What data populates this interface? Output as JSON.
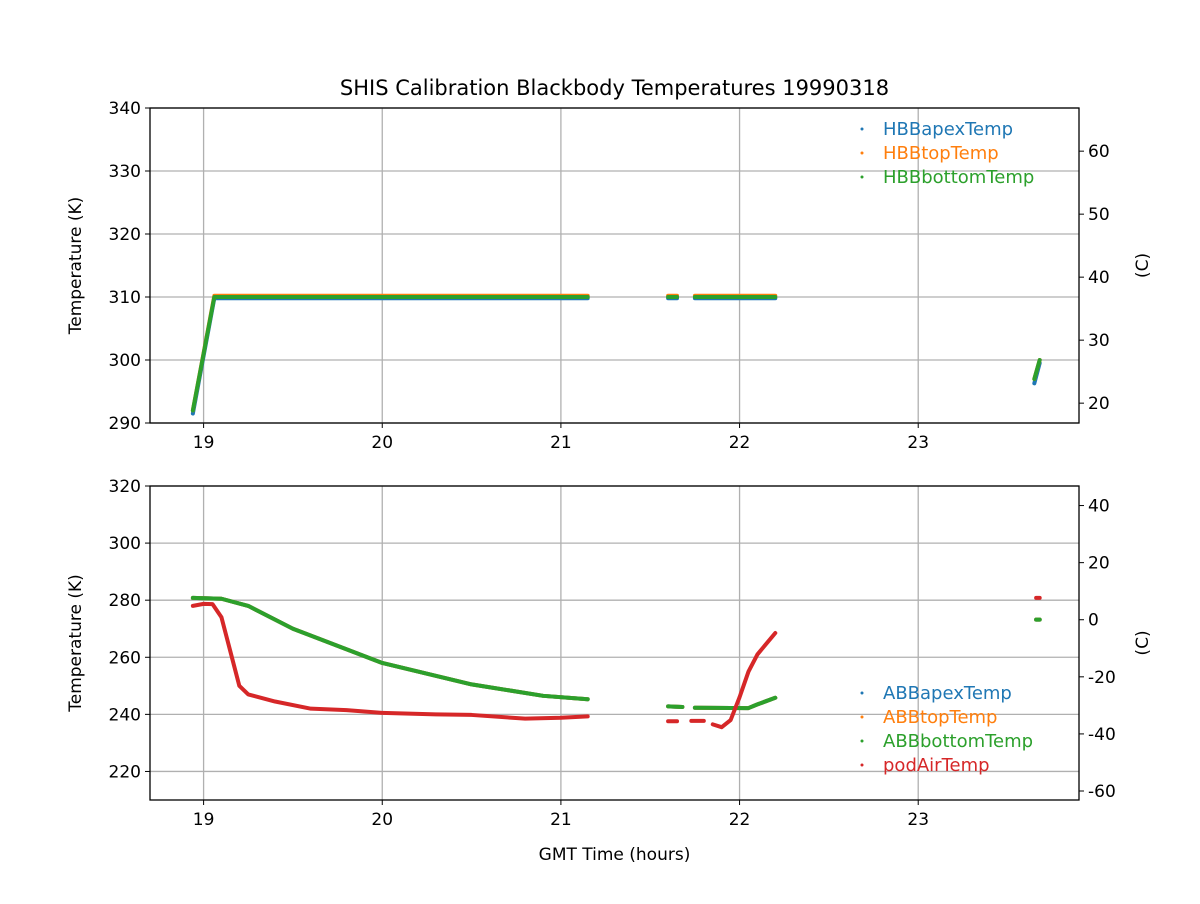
{
  "chart_data": [
    {
      "type": "scatter",
      "title": "SHIS Calibration Blackbody Temperatures 19990318",
      "xlabel": "",
      "ylabel": "Temperature (K)",
      "ylabel_right": "(C)",
      "xlim": [
        18.7,
        23.9
      ],
      "ylim": [
        290,
        340
      ],
      "grid": true,
      "legend": "top-right",
      "xticks": [
        19,
        20,
        21,
        22,
        23
      ],
      "yticks": [
        290,
        300,
        310,
        320,
        330,
        340
      ],
      "yticks_right": [
        20,
        30,
        40,
        50,
        60
      ],
      "series": [
        {
          "name": "HBBapexTemp",
          "color": "#1f77b4",
          "segments": [
            [
              [
                18.94,
                291.5
              ],
              [
                19.06,
                309.8
              ],
              [
                21.15,
                309.8
              ]
            ],
            [
              [
                21.6,
                309.8
              ],
              [
                21.65,
                309.8
              ]
            ],
            [
              [
                21.75,
                309.8
              ],
              [
                22.2,
                309.8
              ]
            ],
            [
              [
                23.65,
                296.3
              ],
              [
                23.68,
                299.5
              ]
            ]
          ]
        },
        {
          "name": "HBBtopTemp",
          "color": "#ff7f0e",
          "segments": [
            [
              [
                18.94,
                292
              ],
              [
                19.06,
                310.2
              ],
              [
                21.15,
                310.2
              ]
            ],
            [
              [
                21.6,
                310.2
              ],
              [
                21.65,
                310.2
              ]
            ],
            [
              [
                21.75,
                310.2
              ],
              [
                22.2,
                310.2
              ]
            ],
            [
              [
                23.65,
                297
              ],
              [
                23.68,
                300
              ]
            ]
          ]
        },
        {
          "name": "HBBbottomTemp",
          "color": "#2ca02c",
          "segments": [
            [
              [
                18.94,
                292
              ],
              [
                19.06,
                310
              ],
              [
                21.15,
                310
              ]
            ],
            [
              [
                21.6,
                310
              ],
              [
                21.65,
                310
              ]
            ],
            [
              [
                21.75,
                310
              ],
              [
                22.2,
                310
              ]
            ],
            [
              [
                23.65,
                297
              ],
              [
                23.68,
                300
              ]
            ]
          ]
        }
      ]
    },
    {
      "type": "scatter",
      "title": "",
      "xlabel": "GMT Time (hours)",
      "ylabel": "Temperature (K)",
      "ylabel_right": "(C)",
      "xlim": [
        18.7,
        23.9
      ],
      "ylim": [
        210,
        320
      ],
      "grid": true,
      "legend": "bottom-right",
      "xticks": [
        19,
        20,
        21,
        22,
        23
      ],
      "yticks": [
        220,
        240,
        260,
        280,
        300,
        320
      ],
      "yticks_right": [
        -60,
        -40,
        -20,
        0,
        20,
        40
      ],
      "series": [
        {
          "name": "ABBapexTemp",
          "color": "#1f77b4",
          "segments": [
            [
              [
                18.94,
                280.8
              ],
              [
                19.1,
                280.5
              ],
              [
                19.25,
                278
              ],
              [
                19.5,
                270
              ],
              [
                20,
                258
              ],
              [
                20.5,
                250.5
              ],
              [
                20.9,
                246.5
              ],
              [
                21.15,
                245.3
              ]
            ],
            [
              [
                21.6,
                242.8
              ],
              [
                21.68,
                242.6
              ]
            ],
            [
              [
                21.75,
                242.3
              ],
              [
                22.05,
                242.2
              ],
              [
                22.1,
                243.5
              ],
              [
                22.2,
                245.8
              ]
            ],
            [
              [
                23.66,
                273.2
              ],
              [
                23.68,
                273.2
              ]
            ]
          ]
        },
        {
          "name": "ABBtopTemp",
          "color": "#ff7f0e",
          "segments": [
            [
              [
                18.94,
                280.8
              ],
              [
                19.1,
                280.5
              ],
              [
                19.25,
                278
              ],
              [
                19.5,
                270
              ],
              [
                20,
                258
              ],
              [
                20.5,
                250.5
              ],
              [
                20.9,
                246.5
              ],
              [
                21.15,
                245.3
              ]
            ],
            [
              [
                21.6,
                242.8
              ],
              [
                21.68,
                242.6
              ]
            ],
            [
              [
                21.75,
                242.3
              ],
              [
                22.05,
                242.2
              ],
              [
                22.1,
                243.5
              ],
              [
                22.2,
                245.8
              ]
            ],
            [
              [
                23.66,
                273.2
              ],
              [
                23.68,
                273.2
              ]
            ]
          ]
        },
        {
          "name": "ABBbottomTemp",
          "color": "#2ca02c",
          "segments": [
            [
              [
                18.94,
                280.8
              ],
              [
                19.1,
                280.5
              ],
              [
                19.25,
                278
              ],
              [
                19.5,
                270
              ],
              [
                20,
                258
              ],
              [
                20.5,
                250.5
              ],
              [
                20.9,
                246.5
              ],
              [
                21.15,
                245.3
              ]
            ],
            [
              [
                21.6,
                242.8
              ],
              [
                21.68,
                242.6
              ]
            ],
            [
              [
                21.75,
                242.3
              ],
              [
                22.05,
                242.2
              ],
              [
                22.1,
                243.5
              ],
              [
                22.2,
                245.8
              ]
            ],
            [
              [
                23.66,
                273.2
              ],
              [
                23.68,
                273.2
              ]
            ]
          ]
        },
        {
          "name": "podAirTemp",
          "color": "#d62728",
          "segments": [
            [
              [
                18.94,
                278
              ],
              [
                19.0,
                278.7
              ],
              [
                19.05,
                278.6
              ],
              [
                19.1,
                274
              ],
              [
                19.15,
                262
              ],
              [
                19.2,
                250
              ],
              [
                19.25,
                247
              ],
              [
                19.4,
                244.5
              ],
              [
                19.6,
                242
              ],
              [
                19.8,
                241.5
              ],
              [
                20.0,
                240.5
              ],
              [
                20.3,
                240
              ],
              [
                20.5,
                239.8
              ],
              [
                20.8,
                238.5
              ],
              [
                21.0,
                238.8
              ],
              [
                21.15,
                239.3
              ]
            ],
            [
              [
                21.6,
                237.6
              ],
              [
                21.65,
                237.6
              ]
            ],
            [
              [
                21.73,
                237.7
              ],
              [
                21.8,
                237.7
              ]
            ],
            [
              [
                21.85,
                236.5
              ],
              [
                21.9,
                235.5
              ],
              [
                21.95,
                238
              ],
              [
                22.0,
                246
              ],
              [
                22.05,
                255
              ],
              [
                22.1,
                261
              ],
              [
                22.2,
                268.5
              ]
            ],
            [
              [
                23.66,
                280.8
              ],
              [
                23.68,
                280.8
              ]
            ]
          ]
        }
      ]
    }
  ]
}
